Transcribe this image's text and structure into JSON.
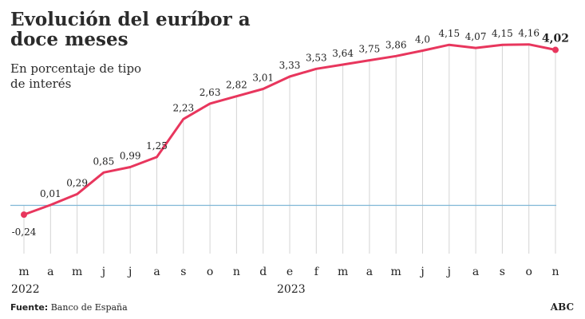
{
  "chart_data": {
    "type": "line",
    "title": "Evolución del euríbor a doce meses",
    "subtitle": "En porcentaje de tipo de interés",
    "x": [
      "m",
      "a",
      "m",
      "j",
      "j",
      "a",
      "s",
      "o",
      "n",
      "d",
      "e",
      "f",
      "m",
      "a",
      "m",
      "j",
      "j",
      "a",
      "s",
      "o",
      "n"
    ],
    "year_labels": [
      {
        "index": 0,
        "label": "2022"
      },
      {
        "index": 10,
        "label": "2023"
      }
    ],
    "series": [
      {
        "values": [
          -0.24,
          0.01,
          0.29,
          0.85,
          0.99,
          1.25,
          2.23,
          2.63,
          2.82,
          3.01,
          3.33,
          3.53,
          3.64,
          3.75,
          3.86,
          4.0,
          4.15,
          4.07,
          4.15,
          4.16,
          4.02
        ],
        "labels": [
          "-0,24",
          "0,01",
          "0,29",
          "0,85",
          "0,99",
          "1,25",
          "2,23",
          "2,63",
          "2,82",
          "3,01",
          "3,33",
          "3,53",
          "3,64",
          "3,75",
          "3,86",
          "4,0",
          "4,15",
          "4,07",
          "4,15",
          "4,16",
          "4,02"
        ]
      }
    ],
    "baseline": 0,
    "grid": "vertical",
    "colors": {
      "line": "#e8365d",
      "baseline": "#7fb7d6",
      "grid": "#d4d4d4",
      "text": "#222222"
    }
  },
  "footer": {
    "source_label": "Fuente:",
    "source_text": " Banco de España",
    "brand": "ABC"
  }
}
